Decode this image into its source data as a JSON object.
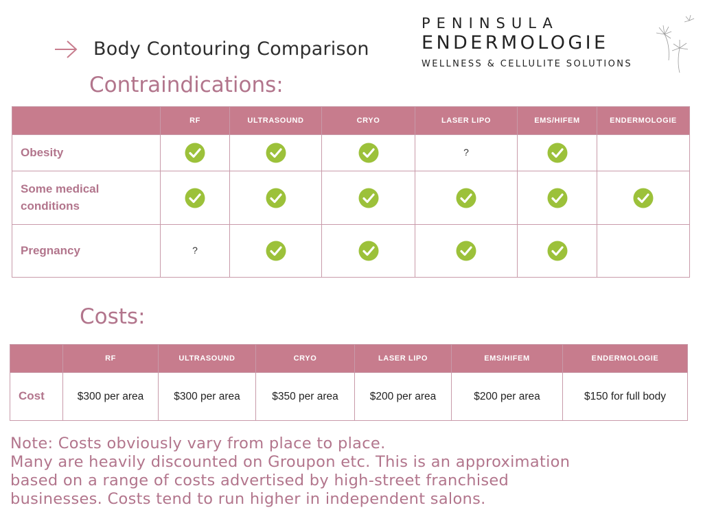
{
  "header": {
    "title": "Body Contouring Comparison"
  },
  "brand": {
    "line1": "PENINSULA",
    "line2": "ENDERMOLOGIE",
    "line3": "WELLNESS & CELLULITE SOLUTIONS"
  },
  "colors": {
    "accent": "#c77c8d",
    "heading": "#b2758c",
    "check": "#9cc13a"
  },
  "contraindications": {
    "heading": "Contraindications:",
    "columns": [
      "",
      "RF",
      "ULTRASOUND",
      "CRYO",
      "LASER LIPO",
      "EMS/HIFEM",
      "ENDERMOLOGIE"
    ],
    "rows": [
      {
        "label": "Obesity",
        "cells": [
          "check",
          "check",
          "check",
          "?",
          "check",
          ""
        ]
      },
      {
        "label_line1": "Some medical",
        "label_line2": "conditions",
        "cells": [
          "check",
          "check",
          "check",
          "check",
          "check",
          "check"
        ]
      },
      {
        "label": "Pregnancy",
        "cells": [
          "?",
          "check",
          "check",
          "check",
          "check",
          ""
        ]
      }
    ]
  },
  "costs": {
    "heading": "Costs:",
    "columns": [
      "",
      "RF",
      "ULTRASOUND",
      "CRYO",
      "LASER LIPO",
      "EMS/HIFEM",
      "ENDERMOLOGIE"
    ],
    "row": {
      "label": "Cost",
      "values": [
        "$300 per area",
        "$300 per area",
        "$350 per area",
        "$200 per area",
        "$200 per area",
        "$150 for full body"
      ]
    }
  },
  "note": {
    "line1": "Note: Costs obviously vary from place to place.",
    "line2": "Many are heavily discounted on Groupon etc. This is an approximation",
    "line3": "based on a range of costs advertised by high-street franchised",
    "line4": "businesses. Costs tend to run higher in independent salons."
  }
}
